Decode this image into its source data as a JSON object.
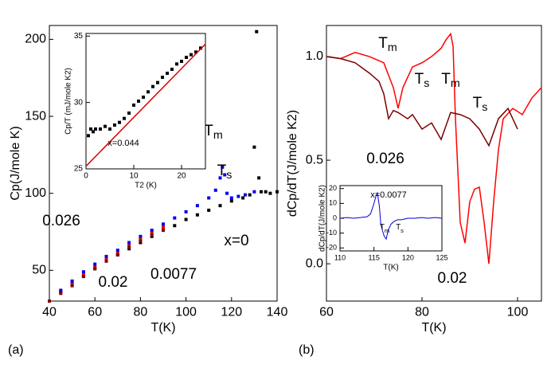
{
  "chart_data": [
    {
      "type": "scatter",
      "panel": "(a)",
      "xlabel": "T(K)",
      "ylabel": "Cp(J/mole K)",
      "xlim": [
        40,
        140
      ],
      "ylim": [
        30,
        209
      ],
      "xticks": [
        40,
        60,
        80,
        100,
        120,
        140
      ],
      "yticks": [
        50,
        100,
        150,
        200
      ],
      "marker": "square",
      "series": [
        {
          "name": "x=0",
          "color": "#000000",
          "x": [
            40,
            45,
            50,
            55,
            60,
            65,
            70,
            75,
            80,
            85,
            90,
            95,
            100,
            105,
            110,
            115,
            120,
            125,
            128,
            130,
            131,
            132,
            133,
            135,
            137,
            140
          ],
          "values": [
            30,
            36,
            41,
            46,
            51,
            56,
            60,
            64,
            68,
            72,
            76,
            79,
            83,
            86,
            89,
            92,
            95,
            97,
            99,
            130,
            205,
            110,
            101,
            101,
            100,
            101
          ]
        },
        {
          "name": "0.0077",
          "color": "#e00000",
          "x": [
            40,
            45,
            50,
            55,
            60,
            65,
            70,
            75,
            80,
            85,
            90
          ],
          "values": [
            30,
            36,
            42,
            47,
            52,
            57,
            61,
            66,
            70,
            75,
            78
          ]
        },
        {
          "name": "0.026",
          "color": "#0000ee",
          "x": [
            40,
            45,
            50,
            55,
            60,
            65,
            70,
            75,
            80,
            85,
            90,
            95,
            100,
            105,
            110,
            113,
            115,
            116,
            117,
            118,
            120,
            123,
            126,
            130
          ],
          "values": [
            30,
            37,
            43,
            49,
            54,
            59,
            63,
            68,
            72,
            76,
            80,
            84,
            88,
            92,
            97,
            102,
            110,
            117,
            112,
            100,
            97,
            98,
            99,
            101
          ]
        },
        {
          "name": "0.02",
          "color": "#800000",
          "x": [
            40,
            45,
            50,
            55,
            60,
            65,
            70,
            75,
            80,
            85,
            90
          ],
          "values": [
            30,
            35,
            40,
            46,
            51,
            56,
            60,
            65,
            69,
            73,
            76
          ]
        }
      ],
      "annotations": [
        "Tm",
        "Ts"
      ]
    },
    {
      "type": "scatter",
      "xlabel": "T2 (K)",
      "ylabel": "Cp/T (mJ/mole K2)",
      "xlim": [
        0,
        25
      ],
      "ylim": [
        25,
        35.2
      ],
      "xticks": [
        0,
        10,
        20
      ],
      "yticks": [
        25,
        30,
        35
      ],
      "marker": "square",
      "series": [
        {
          "name": null,
          "color": "#000000",
          "x": [
            0.5,
            1,
            1.5,
            2,
            3,
            4,
            5,
            6,
            7,
            8,
            9,
            10,
            11,
            12,
            13,
            14,
            15,
            16,
            17,
            18,
            19,
            20,
            21,
            22,
            23,
            24
          ],
          "values": [
            27.5,
            28,
            27.8,
            28,
            28,
            28.2,
            28,
            28.3,
            28.5,
            28.8,
            29.2,
            29.8,
            30.1,
            30.4,
            30.8,
            31.2,
            31.5,
            31.9,
            32.2,
            32.5,
            32.9,
            33.1,
            33.4,
            33.6,
            33.8,
            34.1
          ]
        },
        {
          "name": null,
          "color": "#e00000",
          "line": true,
          "x": [
            0,
            25
          ],
          "values": [
            25.2,
            34.4
          ]
        }
      ],
      "annotations": [
        "x=0.044"
      ]
    },
    {
      "type": "line",
      "panel": "(b)",
      "xlabel": "T(K)",
      "ylabel": "dCp/dT(J/mole K2)",
      "xlim": [
        60,
        105
      ],
      "ylim": [
        -0.18,
        1.15
      ],
      "xticks": [
        60,
        80,
        100
      ],
      "yticks": [
        {
          "value": 0,
          "label": "0.0"
        },
        {
          "value": 0.5,
          "label": "0.5"
        },
        {
          "value": 1,
          "label": "1.0"
        }
      ],
      "series": [
        {
          "name": "0.02",
          "color": "#ff0000",
          "x": [
            60,
            63,
            66,
            69,
            72,
            74,
            75,
            76,
            78,
            80,
            82,
            84,
            85,
            86,
            86.5,
            87,
            88,
            89,
            90,
            91,
            92,
            93,
            94,
            95,
            96,
            97,
            99,
            101,
            103,
            105
          ],
          "values": [
            1.0,
            0.99,
            1.02,
            1.0,
            0.97,
            0.85,
            0.75,
            0.85,
            0.95,
            0.97,
            1.0,
            1.04,
            1.08,
            1.11,
            1.05,
            0.7,
            0.2,
            0.1,
            0.3,
            0.36,
            0.37,
            0.2,
            0.0,
            0.3,
            0.55,
            0.7,
            0.75,
            0.72,
            0.8,
            0.85
          ]
        },
        {
          "name": "0.026",
          "color": "#7a0000",
          "x": [
            60,
            63,
            66,
            69,
            71,
            72,
            73,
            74,
            75,
            77,
            78,
            80,
            82,
            84,
            86,
            88,
            90,
            92,
            94,
            96,
            98,
            100
          ],
          "values": [
            1.0,
            0.99,
            0.97,
            0.92,
            0.88,
            0.82,
            0.7,
            0.74,
            0.73,
            0.7,
            0.72,
            0.65,
            0.68,
            0.6,
            0.73,
            0.72,
            0.7,
            0.65,
            0.57,
            0.7,
            0.75,
            0.65
          ]
        }
      ],
      "annotations": [
        "Tm",
        "Ts",
        "Tm",
        "Ts"
      ]
    },
    {
      "type": "line",
      "xlabel": "T(K)",
      "ylabel": "dCp/dT(J/mole K2)",
      "xlim": [
        110,
        125
      ],
      "ylim": [
        -22,
        22
      ],
      "xticks": [
        110,
        115,
        120,
        125
      ],
      "yticks": [
        -20,
        -10,
        0,
        10,
        20
      ],
      "series": [
        {
          "name": null,
          "color": "#0000dd",
          "x": [
            110,
            111,
            112,
            113,
            114,
            114.5,
            115,
            115.3,
            115.5,
            115.8,
            116,
            116.3,
            116.5,
            116.8,
            117.1,
            117.5,
            118,
            118.5,
            119,
            120,
            121,
            122,
            123,
            124,
            125
          ],
          "values": [
            0,
            0.5,
            0,
            0.5,
            1,
            3,
            10,
            15,
            17,
            8,
            -4,
            -9,
            -12,
            -14,
            -8,
            -4,
            -2,
            -1,
            -1,
            0,
            0,
            0.5,
            0,
            0.5,
            0
          ]
        }
      ],
      "annotations": [
        "x=0.0077",
        "Tm",
        "Ts"
      ]
    }
  ]
}
